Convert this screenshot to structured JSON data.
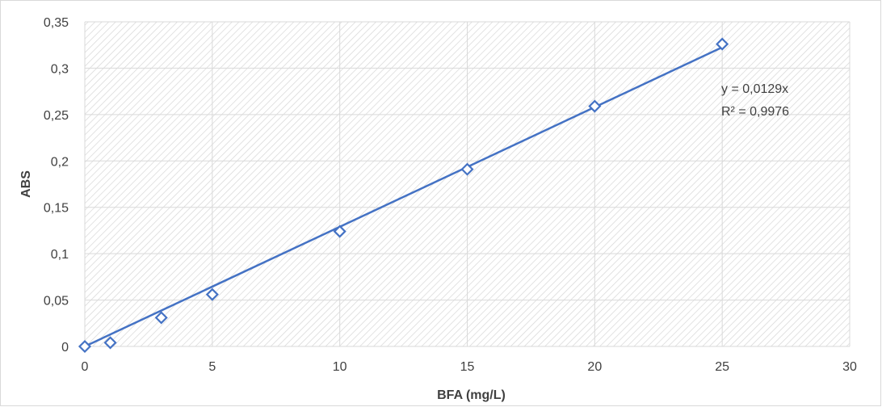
{
  "chart_data": {
    "type": "scatter",
    "title": "",
    "xlabel": "BFA (mg/L)",
    "ylabel": "ABS",
    "xlim": [
      0,
      30
    ],
    "ylim": [
      0,
      0.35
    ],
    "x_ticks": [
      0,
      5,
      10,
      15,
      20,
      25,
      30
    ],
    "y_ticks": [
      0,
      0.05,
      0.1,
      0.15,
      0.2,
      0.25,
      0.3,
      0.35
    ],
    "x_tick_labels": [
      "0",
      "5",
      "10",
      "15",
      "20",
      "25",
      "30"
    ],
    "y_tick_labels": [
      "0",
      "0,05",
      "0,1",
      "0,15",
      "0,2",
      "0,25",
      "0,3",
      "0,35"
    ],
    "grid": true,
    "legend": "none",
    "series": [
      {
        "marker": "diamond-open",
        "color": "#4472C4",
        "points": [
          {
            "x": 0,
            "y": 0.0
          },
          {
            "x": 1,
            "y": 0.004
          },
          {
            "x": 3,
            "y": 0.031
          },
          {
            "x": 5,
            "y": 0.056
          },
          {
            "x": 10,
            "y": 0.124
          },
          {
            "x": 15,
            "y": 0.191
          },
          {
            "x": 20,
            "y": 0.259
          },
          {
            "x": 25,
            "y": 0.326
          }
        ]
      }
    ],
    "trendline": {
      "type": "linear",
      "slope": 0.0129,
      "intercept": 0,
      "x_range": [
        0,
        25
      ],
      "color": "#4472C4"
    },
    "annotations": {
      "equation": "y = 0,0129x",
      "r_squared": "R² = 0,9976"
    }
  }
}
